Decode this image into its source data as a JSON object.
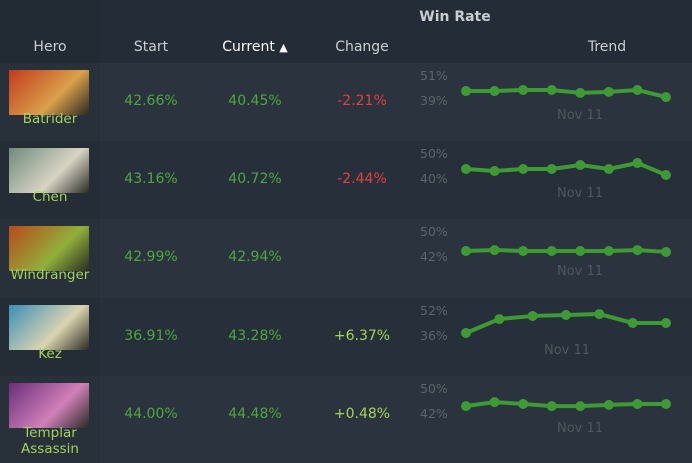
{
  "header": {
    "group": "Win Rate",
    "hero": "Hero",
    "start": "Start",
    "current": "Current",
    "sort_icon": "sort-ascending-icon",
    "change": "Change",
    "trend": "Trend"
  },
  "colors": {
    "positive": "#4ca83d",
    "negative": "#e0413a",
    "line": "#3e9a34"
  },
  "rows": [
    {
      "hero": "Batrider",
      "start": "42.66%",
      "current": "40.45%",
      "change": "-2.21%",
      "hi": "51%",
      "lo": "39%",
      "range": [
        39,
        51
      ],
      "date": "Nov 11",
      "trend": [
        43.3,
        43.3,
        43.8,
        43.8,
        42.4,
        42.9,
        43.8,
        40.4
      ],
      "c1": "#c23a1e",
      "c2": "#d9a04a"
    },
    {
      "hero": "Chen",
      "start": "43.16%",
      "current": "40.72%",
      "change": "-2.44%",
      "hi": "50%",
      "lo": "40%",
      "range": [
        40,
        50
      ],
      "date": "Nov 11",
      "trend": [
        43.6,
        42.8,
        43.6,
        43.6,
        45.2,
        43.6,
        46,
        41.2
      ],
      "c1": "#6f8a7c",
      "c2": "#d8d4c4"
    },
    {
      "hero": "Windranger",
      "start": "42.99%",
      "current": "42.94%",
      "change": "",
      "hi": "50%",
      "lo": "42%",
      "range": [
        42,
        50
      ],
      "date": "Nov 11",
      "trend": [
        43.6,
        43.9,
        43.6,
        43.6,
        43.6,
        43.6,
        43.9,
        43.3
      ],
      "c1": "#b84a1c",
      "c2": "#8fb03a"
    },
    {
      "hero": "Kez",
      "start": "36.91%",
      "current": "43.28%",
      "change": "+6.37%",
      "hi": "52%",
      "lo": "36%",
      "range": [
        36,
        52
      ],
      "date": "Nov 11",
      "trend": [
        37.3,
        46.2,
        48.2,
        48.8,
        49.4,
        43.7,
        43.7
      ],
      "c1": "#3b8fb8",
      "c2": "#d9d4b0"
    },
    {
      "hero": "Templar Assassin",
      "start": "44.00%",
      "current": "44.48%",
      "change": "+0.48%",
      "hi": "50%",
      "lo": "42%",
      "range": [
        42,
        50
      ],
      "date": "Nov 11",
      "trend": [
        44.2,
        45.5,
        44.9,
        44.2,
        44.2,
        44.6,
        44.9,
        44.9
      ],
      "c1": "#6a2d7a",
      "c2": "#d080b8"
    }
  ]
}
